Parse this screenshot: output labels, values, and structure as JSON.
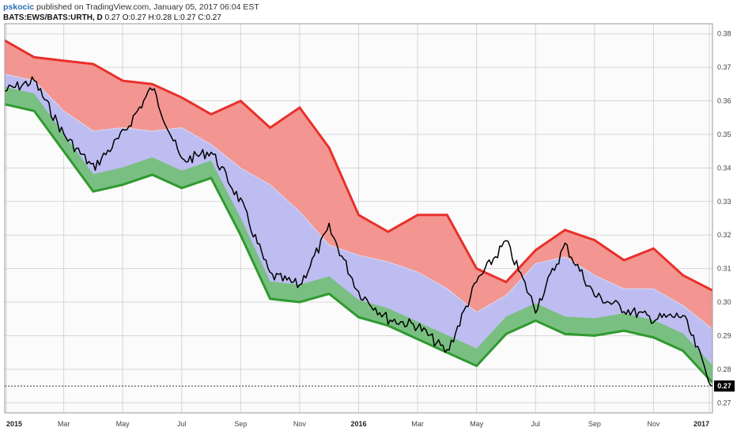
{
  "header": {
    "author": "pskocic",
    "published": " published on TradingView.com, January 05, 2017 06:04 EST",
    "symbol": "BATS:EWS/BATS:URTH, D",
    "ohlc": " 0.27 O:0.27 H:0.28 L:0.27 C:0.27"
  },
  "chart_data": {
    "type": "line",
    "x_labels": [
      "2015",
      "Mar",
      "May",
      "Jul",
      "Sep",
      "Nov",
      "2016",
      "Mar",
      "May",
      "Jul",
      "Sep",
      "Nov",
      "2017"
    ],
    "y_ticks": [
      "0.38",
      "0.37",
      "0.36",
      "0.35",
      "0.34",
      "0.33",
      "0.32",
      "0.31",
      "0.30",
      "0.29",
      "0.28",
      "0.27"
    ],
    "ylim": [
      0.267,
      0.383
    ],
    "last_price_label": "0.27",
    "last_price": 0.275,
    "colors": {
      "upper_band": "#e8302a",
      "upper_fill": "#f28b85",
      "mid_fill": "#b9b9f0",
      "lower_band": "#2f9a2f",
      "lower_fill": "#6fbf6f",
      "price": "#000000"
    },
    "series": [
      {
        "name": "upper",
        "x": [
          0,
          1,
          2,
          3,
          4,
          5,
          6,
          7,
          8,
          9,
          10,
          11,
          12,
          13,
          14,
          15,
          16,
          17,
          18,
          19,
          20,
          21,
          22,
          23,
          24
        ],
        "values": [
          0.378,
          0.373,
          0.372,
          0.371,
          0.366,
          0.365,
          0.361,
          0.356,
          0.36,
          0.352,
          0.358,
          0.346,
          0.326,
          0.321,
          0.326,
          0.326,
          0.31,
          0.306,
          0.3155,
          0.3215,
          0.3185,
          0.3125,
          0.316,
          0.308,
          0.3035
        ]
      },
      {
        "name": "middle",
        "x": [
          0,
          1,
          2,
          3,
          4,
          5,
          6,
          7,
          8,
          9,
          10,
          11,
          12,
          13,
          14,
          15,
          16,
          17,
          18,
          19,
          20,
          21,
          22,
          23,
          24
        ],
        "values": [
          0.368,
          0.366,
          0.357,
          0.351,
          0.352,
          0.351,
          0.352,
          0.347,
          0.34,
          0.335,
          0.327,
          0.317,
          0.314,
          0.312,
          0.309,
          0.304,
          0.297,
          0.302,
          0.3115,
          0.3135,
          0.308,
          0.304,
          0.304,
          0.299,
          0.292
        ]
      },
      {
        "name": "lower",
        "x": [
          0,
          1,
          2,
          3,
          4,
          5,
          6,
          7,
          8,
          9,
          10,
          11,
          12,
          13,
          14,
          15,
          16,
          17,
          18,
          19,
          20,
          21,
          22,
          23,
          24
        ],
        "values": [
          0.359,
          0.357,
          0.345,
          0.333,
          0.335,
          0.338,
          0.334,
          0.337,
          0.32,
          0.301,
          0.3,
          0.3025,
          0.2955,
          0.293,
          0.289,
          0.285,
          0.281,
          0.2905,
          0.2945,
          0.2905,
          0.29,
          0.2915,
          0.2895,
          0.2855,
          0.276
        ]
      },
      {
        "name": "price",
        "x": [
          0,
          1,
          2,
          3,
          4,
          5,
          6,
          7,
          8,
          9,
          10,
          11,
          12,
          13,
          14,
          15,
          16,
          17,
          18,
          19,
          20,
          21,
          22,
          23,
          24
        ],
        "values": [
          0.363,
          0.366,
          0.35,
          0.34,
          0.35,
          0.364,
          0.342,
          0.345,
          0.33,
          0.308,
          0.305,
          0.322,
          0.303,
          0.295,
          0.293,
          0.285,
          0.306,
          0.318,
          0.298,
          0.317,
          0.302,
          0.298,
          0.295,
          0.296,
          0.275
        ]
      }
    ]
  }
}
